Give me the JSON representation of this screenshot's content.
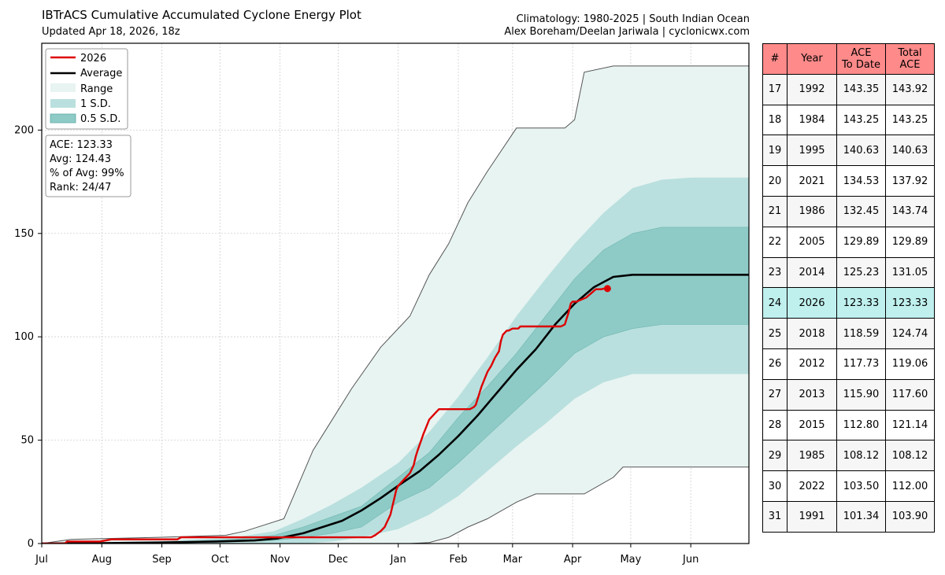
{
  "header": {
    "title": "IBTrACS Cumulative Accumulated Cyclone Energy Plot",
    "updated": "Updated Apr 18, 2026, 18z",
    "climatology": "Climatology: 1980-2025 | South Indian Ocean",
    "credits": "Alex Boreham/Deelan Jariwala | cyclonicwx.com"
  },
  "legend": {
    "items": [
      "2026",
      "Average",
      "Range",
      "1 S.D.",
      "0.5 S.D."
    ]
  },
  "stats": {
    "ace": "ACE: 123.33",
    "avg": "Avg: 124.43",
    "pct": "% of Avg: 99%",
    "rank": "Rank: 24/47"
  },
  "chart_data": {
    "type": "line",
    "x_unit": "days since Jul 1",
    "x_ticks": [
      {
        "label": "Jul",
        "day": 0
      },
      {
        "label": "Aug",
        "day": 31
      },
      {
        "label": "Sep",
        "day": 62
      },
      {
        "label": "Oct",
        "day": 92
      },
      {
        "label": "Nov",
        "day": 123
      },
      {
        "label": "Dec",
        "day": 153
      },
      {
        "label": "Jan",
        "day": 184
      },
      {
        "label": "Feb",
        "day": 215
      },
      {
        "label": "Mar",
        "day": 243
      },
      {
        "label": "Apr",
        "day": 274
      },
      {
        "label": "May",
        "day": 304
      },
      {
        "label": "Jun",
        "day": 335
      }
    ],
    "xlim": [
      0,
      365
    ],
    "ylim": [
      0,
      242
    ],
    "y_ticks": [
      0,
      50,
      100,
      150,
      200
    ],
    "grid": true,
    "legend_position": "upper-left",
    "colors": {
      "current": "#dd0000",
      "average": "#000000",
      "range": "#e8f4f2",
      "sd1": "#b9e0de",
      "sd05": "#8ecbc7",
      "range_edge": "#555555"
    },
    "series": [
      {
        "name": "2026",
        "x": [
          0,
          12,
          13,
          30,
          36,
          70,
          72,
          92,
          100,
          115,
          130,
          145,
          160,
          170,
          172,
          175,
          177,
          178,
          179,
          180,
          181,
          182,
          183,
          184,
          185,
          186,
          187,
          188,
          190,
          192,
          193,
          194,
          197,
          200,
          202,
          203,
          204,
          205,
          206,
          208,
          210,
          216,
          221,
          223,
          224,
          225,
          226,
          227,
          230,
          232,
          233,
          234,
          236,
          237,
          238,
          240,
          241,
          243,
          246,
          247,
          260,
          268,
          270,
          271,
          272,
          273,
          274,
          275,
          276,
          281,
          286,
          289,
          290,
          292
        ],
        "y": [
          0,
          0,
          1,
          1,
          2,
          2,
          3,
          3,
          3,
          3,
          3,
          3,
          3,
          3,
          4,
          6,
          8,
          10,
          12,
          14,
          18,
          22,
          26,
          28,
          29,
          30,
          31,
          32,
          34,
          38,
          42,
          45,
          53,
          60,
          62,
          63,
          64,
          65,
          65,
          65,
          65,
          65,
          65,
          66,
          67,
          70,
          73,
          76,
          83,
          86,
          88,
          90,
          93,
          98,
          101,
          103,
          103,
          104,
          104,
          105,
          105,
          105,
          106,
          109,
          112,
          116,
          117,
          117,
          117,
          119,
          123,
          123,
          123.33,
          123.33
        ]
      },
      {
        "name": "Average",
        "x": [
          0,
          30,
          60,
          90,
          110,
          122,
          135,
          145,
          155,
          165,
          175,
          184,
          195,
          205,
          215,
          225,
          235,
          245,
          255,
          265,
          275,
          285,
          295,
          305,
          320,
          335,
          365
        ],
        "y": [
          0,
          0.2,
          0.5,
          1,
          1.5,
          2.5,
          5,
          8,
          11,
          16,
          22,
          28,
          35,
          43,
          52,
          62,
          73,
          84,
          94,
          106,
          116,
          124,
          129,
          130,
          130,
          130,
          130
        ]
      },
      {
        "name": "Range",
        "x": [
          0,
          15,
          60,
          95,
          105,
          125,
          140,
          150,
          160,
          175,
          190,
          200,
          210,
          220,
          230,
          245,
          255,
          270,
          275,
          280,
          295,
          300,
          320,
          365
        ],
        "upper": [
          0,
          2,
          3,
          4,
          6,
          12,
          45,
          60,
          75,
          95,
          110,
          130,
          145,
          165,
          180,
          201,
          201,
          201,
          205,
          228,
          231,
          231,
          231,
          231
        ],
        "lower": [
          0,
          0,
          0,
          0,
          0,
          0,
          0,
          0,
          0,
          0,
          0,
          0.5,
          3,
          8,
          12,
          20,
          24,
          24,
          24,
          24,
          32,
          37,
          37,
          37
        ]
      },
      {
        "name": "1 S.D.",
        "x": [
          0,
          60,
          100,
          120,
          135,
          150,
          165,
          184,
          200,
          215,
          230,
          245,
          260,
          275,
          290,
          305,
          320,
          335,
          365
        ],
        "upper": [
          0,
          1,
          3,
          6,
          12,
          19,
          27,
          39,
          54,
          71,
          90,
          110,
          128,
          145,
          160,
          172,
          176,
          177,
          177
        ],
        "lower": [
          0,
          0,
          0,
          0,
          0,
          1,
          3,
          7,
          14,
          23,
          35,
          47,
          58,
          70,
          78,
          82,
          82,
          82,
          82
        ]
      },
      {
        "name": "0.5 S.D.",
        "x": [
          0,
          60,
          100,
          120,
          135,
          150,
          165,
          184,
          200,
          215,
          230,
          245,
          260,
          275,
          290,
          305,
          320,
          335,
          365
        ],
        "upper": [
          0,
          0.5,
          2,
          4,
          8,
          13,
          18,
          32,
          44,
          61,
          76,
          92,
          110,
          128,
          142,
          150,
          153,
          153,
          153
        ],
        "lower": [
          0,
          0,
          1,
          1.5,
          3,
          5,
          8,
          20,
          27,
          39,
          52,
          65,
          78,
          92,
          100,
          104,
          106,
          106,
          106
        ]
      }
    ]
  },
  "table": {
    "headers": [
      "#",
      "Year",
      "ACE\nTo Date",
      "Total\nACE"
    ],
    "highlight_rank": "24",
    "rows": [
      [
        "17",
        "1992",
        "143.35",
        "143.92"
      ],
      [
        "18",
        "1984",
        "143.25",
        "143.25"
      ],
      [
        "19",
        "1995",
        "140.63",
        "140.63"
      ],
      [
        "20",
        "2021",
        "134.53",
        "137.92"
      ],
      [
        "21",
        "1986",
        "132.45",
        "143.74"
      ],
      [
        "22",
        "2005",
        "129.89",
        "129.89"
      ],
      [
        "23",
        "2014",
        "125.23",
        "131.05"
      ],
      [
        "24",
        "2026",
        "123.33",
        "123.33"
      ],
      [
        "25",
        "2018",
        "118.59",
        "124.74"
      ],
      [
        "26",
        "2012",
        "117.73",
        "119.06"
      ],
      [
        "27",
        "2013",
        "115.90",
        "117.60"
      ],
      [
        "28",
        "2015",
        "112.80",
        "121.14"
      ],
      [
        "29",
        "1985",
        "108.12",
        "108.12"
      ],
      [
        "30",
        "2022",
        "103.50",
        "112.00"
      ],
      [
        "31",
        "1991",
        "101.34",
        "103.90"
      ]
    ]
  }
}
